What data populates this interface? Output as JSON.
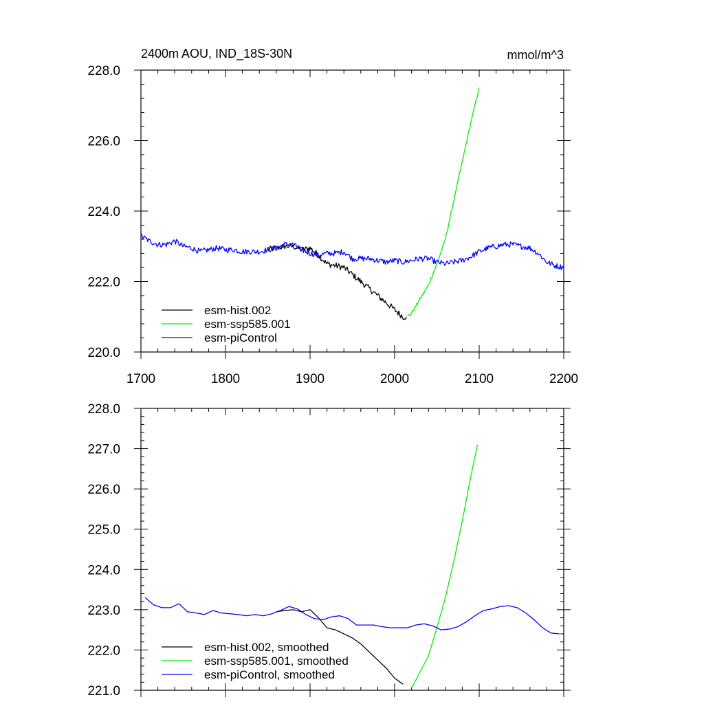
{
  "chart_data": [
    {
      "type": "line",
      "title": "2400m AOU, IND_18S-30N",
      "units": "mmol/m^3",
      "xlabel": "",
      "ylabel": "",
      "xlim": [
        1700,
        2200
      ],
      "ylim": [
        220.0,
        228.0
      ],
      "xticks": [
        1700,
        1800,
        1900,
        2000,
        2100,
        2200
      ],
      "xtick_labels": [
        "1700",
        "1800",
        "1900",
        "2000",
        "2100",
        "2200"
      ],
      "yticks": [
        220.0,
        222.0,
        224.0,
        226.0,
        228.0
      ],
      "ytick_labels": [
        "220.0",
        "222.0",
        "224.0",
        "226.0",
        "228.0"
      ],
      "legend_position": "bottom-left",
      "series": [
        {
          "name": "esm-hist.002",
          "color": "#000000",
          "noise": 0.09,
          "x": [
            1850,
            1860,
            1870,
            1880,
            1890,
            1900,
            1910,
            1920,
            1930,
            1940,
            1950,
            1960,
            1970,
            1980,
            1990,
            2000,
            2010,
            2014
          ],
          "y": [
            222.9,
            222.95,
            223.0,
            223.0,
            222.9,
            222.95,
            222.75,
            222.5,
            222.45,
            222.4,
            222.2,
            222.0,
            221.8,
            221.6,
            221.4,
            221.2,
            221.0,
            221.0
          ]
        },
        {
          "name": "esm-ssp585.001",
          "color": "#00ee00",
          "noise": 0.04,
          "x": [
            2015,
            2020,
            2030,
            2040,
            2050,
            2060,
            2070,
            2080,
            2090,
            2100
          ],
          "y": [
            221.0,
            221.1,
            221.5,
            221.9,
            222.5,
            223.2,
            224.3,
            225.4,
            226.5,
            227.5
          ]
        },
        {
          "name": "esm-piControl",
          "color": "#0000ff",
          "noise": 0.08,
          "x": [
            1700,
            1710,
            1720,
            1730,
            1740,
            1750,
            1760,
            1770,
            1780,
            1790,
            1800,
            1810,
            1820,
            1830,
            1840,
            1850,
            1860,
            1870,
            1880,
            1890,
            1900,
            1910,
            1920,
            1930,
            1940,
            1950,
            1960,
            1970,
            1980,
            1990,
            2000,
            2010,
            2020,
            2030,
            2040,
            2050,
            2060,
            2070,
            2080,
            2090,
            2100,
            2110,
            2120,
            2130,
            2140,
            2150,
            2160,
            2170,
            2180,
            2190,
            2200
          ],
          "y": [
            223.3,
            223.15,
            223.05,
            223.05,
            223.15,
            223.0,
            222.95,
            222.85,
            222.9,
            222.95,
            222.9,
            222.9,
            222.85,
            222.85,
            222.85,
            222.9,
            222.95,
            223.05,
            223.05,
            222.9,
            222.8,
            222.75,
            222.8,
            222.8,
            222.85,
            222.65,
            222.65,
            222.65,
            222.6,
            222.55,
            222.6,
            222.55,
            222.6,
            222.65,
            222.65,
            222.55,
            222.5,
            222.55,
            222.6,
            222.7,
            222.85,
            222.95,
            223.0,
            223.05,
            223.05,
            223.0,
            222.95,
            222.8,
            222.55,
            222.45,
            222.4
          ]
        }
      ]
    },
    {
      "type": "line",
      "title": "",
      "xlabel": "",
      "ylabel": "",
      "xlim": [
        1700,
        2200
      ],
      "ylim": [
        221.0,
        228.0
      ],
      "xticks": [
        1700,
        1800,
        1900,
        2000,
        2100,
        2200
      ],
      "xtick_labels": [],
      "yticks": [
        221.0,
        222.0,
        223.0,
        224.0,
        225.0,
        226.0,
        227.0,
        228.0
      ],
      "ytick_labels": [
        "221.0",
        "222.0",
        "223.0",
        "224.0",
        "225.0",
        "226.0",
        "227.0",
        "228.0"
      ],
      "legend_position": "bottom-left",
      "series": [
        {
          "name": "esm-hist.002, smoothed",
          "color": "#000000",
          "noise": 0,
          "x": [
            1860,
            1870,
            1880,
            1890,
            1900,
            1910,
            1920,
            1930,
            1940,
            1950,
            1960,
            1970,
            1980,
            1990,
            2000,
            2010
          ],
          "y": [
            222.95,
            222.98,
            223.0,
            222.95,
            223.0,
            222.8,
            222.55,
            222.5,
            222.4,
            222.3,
            222.15,
            221.95,
            221.75,
            221.55,
            221.3,
            221.15
          ]
        },
        {
          "name": "esm-ssp585.001, smoothed",
          "color": "#00ee00",
          "noise": 0,
          "x": [
            2020,
            2030,
            2040,
            2050,
            2060,
            2070,
            2080,
            2090,
            2098
          ],
          "y": [
            221.05,
            221.45,
            221.85,
            222.55,
            223.3,
            224.2,
            225.2,
            226.3,
            227.1
          ]
        },
        {
          "name": "esm-piControl, smoothed",
          "color": "#0000ff",
          "noise": 0,
          "x": [
            1705,
            1715,
            1725,
            1735,
            1745,
            1755,
            1765,
            1775,
            1785,
            1795,
            1805,
            1815,
            1825,
            1835,
            1845,
            1855,
            1865,
            1875,
            1885,
            1895,
            1905,
            1915,
            1925,
            1935,
            1945,
            1955,
            1965,
            1975,
            1985,
            1995,
            2005,
            2015,
            2025,
            2035,
            2045,
            2055,
            2065,
            2075,
            2085,
            2095,
            2105,
            2115,
            2125,
            2135,
            2145,
            2155,
            2165,
            2175,
            2185,
            2195
          ],
          "y": [
            223.3,
            223.12,
            223.05,
            223.05,
            223.15,
            222.95,
            222.92,
            222.88,
            222.98,
            222.92,
            222.9,
            222.88,
            222.85,
            222.88,
            222.85,
            222.9,
            222.98,
            223.08,
            223.02,
            222.88,
            222.78,
            222.75,
            222.82,
            222.85,
            222.78,
            222.62,
            222.62,
            222.62,
            222.58,
            222.55,
            222.55,
            222.55,
            222.62,
            222.65,
            222.6,
            222.5,
            222.52,
            222.58,
            222.7,
            222.85,
            222.98,
            223.02,
            223.08,
            223.1,
            223.05,
            222.92,
            222.75,
            222.55,
            222.42,
            222.4
          ]
        }
      ]
    }
  ]
}
